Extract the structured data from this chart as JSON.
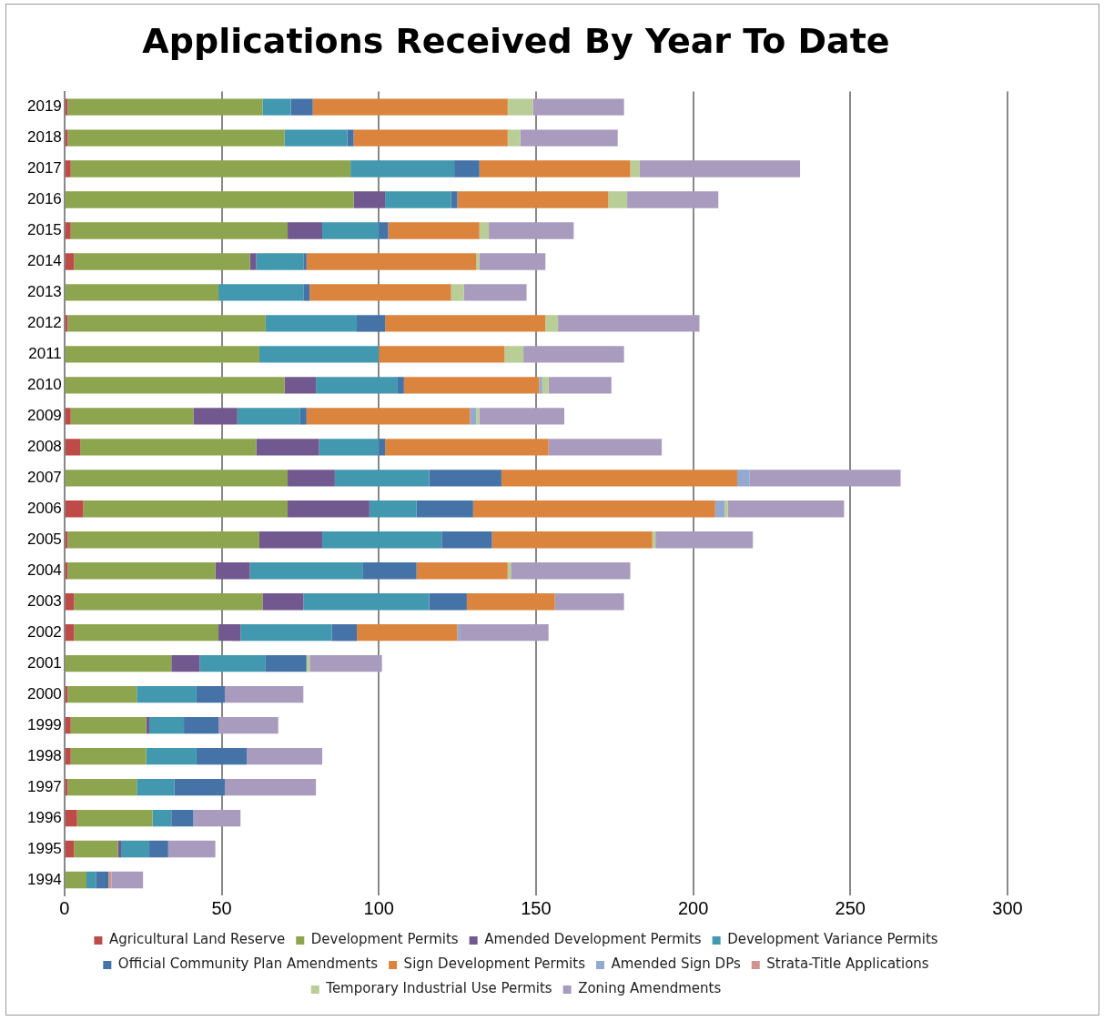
{
  "chart_data": {
    "type": "bar",
    "orientation": "horizontal",
    "stacked": true,
    "title": "Applications Received By Year To Date",
    "categories": [
      "2019",
      "2018",
      "2017",
      "2016",
      "2015",
      "2014",
      "2013",
      "2012",
      "2011",
      "2010",
      "2009",
      "2008",
      "2007",
      "2006",
      "2005",
      "2004",
      "2003",
      "2002",
      "2001",
      "2000",
      "1999",
      "1998",
      "1997",
      "1996",
      "1995",
      "1994"
    ],
    "series": [
      {
        "name": "Agricultural Land Reserve",
        "color": "#be4b48",
        "values": [
          1,
          1,
          2,
          0,
          2,
          3,
          0,
          1,
          0,
          0,
          2,
          5,
          0,
          6,
          1,
          1,
          3,
          3,
          0,
          1,
          2,
          2,
          1,
          4,
          3,
          0
        ]
      },
      {
        "name": "Development Permits",
        "color": "#8da54e",
        "values": [
          62,
          69,
          89,
          92,
          69,
          56,
          49,
          63,
          62,
          70,
          39,
          56,
          71,
          65,
          61,
          47,
          60,
          46,
          34,
          22,
          24,
          24,
          22,
          24,
          14,
          7
        ]
      },
      {
        "name": "Amended Development Permits",
        "color": "#71588f",
        "values": [
          0,
          0,
          0,
          10,
          11,
          2,
          0,
          0,
          0,
          10,
          14,
          20,
          15,
          26,
          20,
          11,
          13,
          7,
          9,
          0,
          1,
          0,
          0,
          0,
          1,
          0
        ]
      },
      {
        "name": "Development Variance Permits",
        "color": "#4198af",
        "values": [
          9,
          20,
          33,
          21,
          18,
          15,
          27,
          29,
          38,
          26,
          20,
          19,
          30,
          15,
          38,
          36,
          40,
          29,
          21,
          19,
          11,
          16,
          12,
          6,
          9,
          3
        ]
      },
      {
        "name": "Official Community Plan Amendments",
        "color": "#4572a7",
        "values": [
          7,
          2,
          8,
          2,
          3,
          1,
          2,
          9,
          0,
          2,
          2,
          2,
          23,
          18,
          16,
          17,
          12,
          8,
          13,
          9,
          11,
          16,
          16,
          7,
          6,
          4
        ]
      },
      {
        "name": "Sign Development Permits",
        "color": "#db843d",
        "values": [
          62,
          49,
          48,
          48,
          29,
          54,
          45,
          51,
          40,
          43,
          52,
          52,
          75,
          77,
          51,
          29,
          28,
          32,
          0,
          0,
          0,
          0,
          0,
          0,
          0,
          0
        ]
      },
      {
        "name": "Amended Sign DPs",
        "color": "#93a9cf",
        "values": [
          0,
          0,
          0,
          0,
          0,
          0,
          0,
          0,
          0,
          1,
          2,
          0,
          4,
          3,
          0,
          0,
          0,
          1,
          0,
          0,
          0,
          0,
          0,
          0,
          0,
          0
        ]
      },
      {
        "name": "Strata-Title Applications",
        "color": "#d19392",
        "values": [
          0,
          0,
          0,
          0,
          0,
          0,
          0,
          0,
          0,
          0,
          0,
          0,
          0,
          0,
          0,
          0,
          0,
          0,
          0,
          0,
          0,
          0,
          0,
          0,
          0,
          1
        ]
      },
      {
        "name": "Temporary Industrial Use Permits",
        "color": "#b9cd96",
        "values": [
          8,
          4,
          3,
          6,
          3,
          1,
          4,
          4,
          6,
          2,
          1,
          0,
          0,
          1,
          1,
          1,
          0,
          0,
          1,
          0,
          0,
          0,
          0,
          0,
          0,
          0
        ]
      },
      {
        "name": "Zoning Amendments",
        "color": "#a99bbd",
        "values": [
          29,
          31,
          51,
          29,
          27,
          21,
          20,
          45,
          32,
          20,
          27,
          36,
          48,
          37,
          31,
          38,
          22,
          28,
          23,
          25,
          19,
          24,
          29,
          15,
          15,
          10
        ]
      }
    ],
    "xlim": [
      0,
      300
    ],
    "xticks": [
      0,
      50,
      100,
      150,
      200,
      250,
      300
    ],
    "grid": "x",
    "legend": "bottom"
  }
}
